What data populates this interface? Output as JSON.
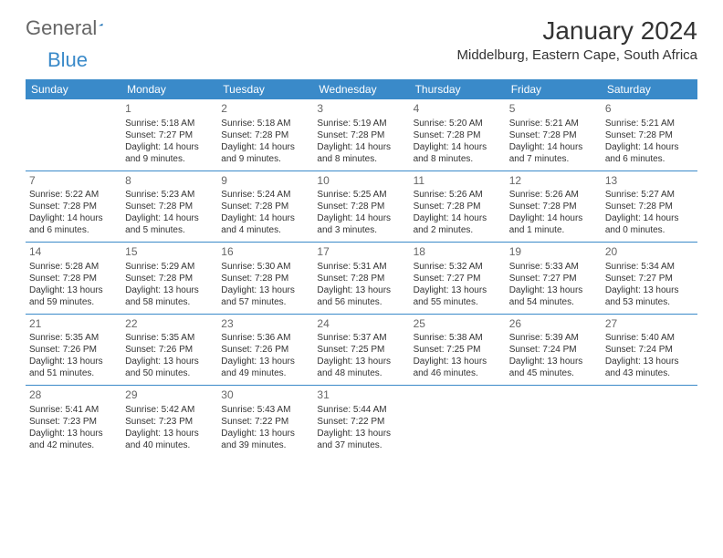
{
  "brand": {
    "part1": "General",
    "part2": "Blue",
    "logo_color": "#1a6fb5"
  },
  "title": "January 2024",
  "location": "Middelburg, Eastern Cape, South Africa",
  "colors": {
    "header_bg": "#3a8ac9",
    "header_text": "#ffffff",
    "border": "#3a8ac9",
    "text": "#333333"
  },
  "day_headers": [
    "Sunday",
    "Monday",
    "Tuesday",
    "Wednesday",
    "Thursday",
    "Friday",
    "Saturday"
  ],
  "weeks": [
    [
      null,
      {
        "n": "1",
        "sr": "5:18 AM",
        "ss": "7:27 PM",
        "dl": "14 hours and 9 minutes."
      },
      {
        "n": "2",
        "sr": "5:18 AM",
        "ss": "7:28 PM",
        "dl": "14 hours and 9 minutes."
      },
      {
        "n": "3",
        "sr": "5:19 AM",
        "ss": "7:28 PM",
        "dl": "14 hours and 8 minutes."
      },
      {
        "n": "4",
        "sr": "5:20 AM",
        "ss": "7:28 PM",
        "dl": "14 hours and 8 minutes."
      },
      {
        "n": "5",
        "sr": "5:21 AM",
        "ss": "7:28 PM",
        "dl": "14 hours and 7 minutes."
      },
      {
        "n": "6",
        "sr": "5:21 AM",
        "ss": "7:28 PM",
        "dl": "14 hours and 6 minutes."
      }
    ],
    [
      {
        "n": "7",
        "sr": "5:22 AM",
        "ss": "7:28 PM",
        "dl": "14 hours and 6 minutes."
      },
      {
        "n": "8",
        "sr": "5:23 AM",
        "ss": "7:28 PM",
        "dl": "14 hours and 5 minutes."
      },
      {
        "n": "9",
        "sr": "5:24 AM",
        "ss": "7:28 PM",
        "dl": "14 hours and 4 minutes."
      },
      {
        "n": "10",
        "sr": "5:25 AM",
        "ss": "7:28 PM",
        "dl": "14 hours and 3 minutes."
      },
      {
        "n": "11",
        "sr": "5:26 AM",
        "ss": "7:28 PM",
        "dl": "14 hours and 2 minutes."
      },
      {
        "n": "12",
        "sr": "5:26 AM",
        "ss": "7:28 PM",
        "dl": "14 hours and 1 minute."
      },
      {
        "n": "13",
        "sr": "5:27 AM",
        "ss": "7:28 PM",
        "dl": "14 hours and 0 minutes."
      }
    ],
    [
      {
        "n": "14",
        "sr": "5:28 AM",
        "ss": "7:28 PM",
        "dl": "13 hours and 59 minutes."
      },
      {
        "n": "15",
        "sr": "5:29 AM",
        "ss": "7:28 PM",
        "dl": "13 hours and 58 minutes."
      },
      {
        "n": "16",
        "sr": "5:30 AM",
        "ss": "7:28 PM",
        "dl": "13 hours and 57 minutes."
      },
      {
        "n": "17",
        "sr": "5:31 AM",
        "ss": "7:28 PM",
        "dl": "13 hours and 56 minutes."
      },
      {
        "n": "18",
        "sr": "5:32 AM",
        "ss": "7:27 PM",
        "dl": "13 hours and 55 minutes."
      },
      {
        "n": "19",
        "sr": "5:33 AM",
        "ss": "7:27 PM",
        "dl": "13 hours and 54 minutes."
      },
      {
        "n": "20",
        "sr": "5:34 AM",
        "ss": "7:27 PM",
        "dl": "13 hours and 53 minutes."
      }
    ],
    [
      {
        "n": "21",
        "sr": "5:35 AM",
        "ss": "7:26 PM",
        "dl": "13 hours and 51 minutes."
      },
      {
        "n": "22",
        "sr": "5:35 AM",
        "ss": "7:26 PM",
        "dl": "13 hours and 50 minutes."
      },
      {
        "n": "23",
        "sr": "5:36 AM",
        "ss": "7:26 PM",
        "dl": "13 hours and 49 minutes."
      },
      {
        "n": "24",
        "sr": "5:37 AM",
        "ss": "7:25 PM",
        "dl": "13 hours and 48 minutes."
      },
      {
        "n": "25",
        "sr": "5:38 AM",
        "ss": "7:25 PM",
        "dl": "13 hours and 46 minutes."
      },
      {
        "n": "26",
        "sr": "5:39 AM",
        "ss": "7:24 PM",
        "dl": "13 hours and 45 minutes."
      },
      {
        "n": "27",
        "sr": "5:40 AM",
        "ss": "7:24 PM",
        "dl": "13 hours and 43 minutes."
      }
    ],
    [
      {
        "n": "28",
        "sr": "5:41 AM",
        "ss": "7:23 PM",
        "dl": "13 hours and 42 minutes."
      },
      {
        "n": "29",
        "sr": "5:42 AM",
        "ss": "7:23 PM",
        "dl": "13 hours and 40 minutes."
      },
      {
        "n": "30",
        "sr": "5:43 AM",
        "ss": "7:22 PM",
        "dl": "13 hours and 39 minutes."
      },
      {
        "n": "31",
        "sr": "5:44 AM",
        "ss": "7:22 PM",
        "dl": "13 hours and 37 minutes."
      },
      null,
      null,
      null
    ]
  ],
  "labels": {
    "sunrise": "Sunrise: ",
    "sunset": "Sunset: ",
    "daylight": "Daylight: "
  }
}
